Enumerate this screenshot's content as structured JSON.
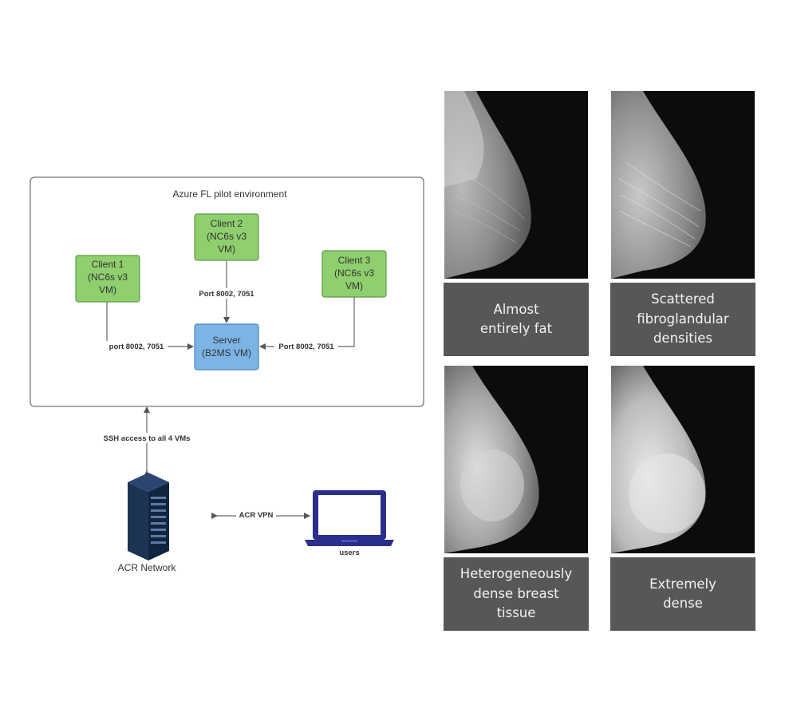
{
  "diagram": {
    "environment_title": "Azure FL pilot environment",
    "clients": [
      {
        "line1": "Client 1",
        "line2": "(NC6s v3",
        "line3": "VM)"
      },
      {
        "line1": "Client 2",
        "line2": "(NC6s v3",
        "line3": "VM)"
      },
      {
        "line1": "Client 3",
        "line2": "(NC6s v3",
        "line3": "VM)"
      }
    ],
    "server": {
      "line1": "Server",
      "line2": "(B2MS VM)"
    },
    "edges": {
      "client1_port": "port 8002, 7051",
      "client2_port": "Port 8002, 7051",
      "client3_port": "Port 8002, 7051",
      "ssh": "SSH access to all 4 VMs",
      "vpn": "ACR VPN"
    },
    "acr_network_label": "ACR Network",
    "users_label": "users",
    "colors": {
      "client_fill": "#8fcf6e",
      "client_stroke": "#5f9b4a",
      "server_fill": "#7cb4e6",
      "server_stroke": "#4a84bd",
      "laptop": "#2a2f8c",
      "server_rack": "#152a45"
    }
  },
  "density_categories": [
    {
      "caption": "Almost\nentirely fat",
      "density_level": 0.1
    },
    {
      "caption": "Scattered\nfibroglandular\ndensities",
      "density_level": 0.35
    },
    {
      "caption": "Heterogeneously\ndense breast\ntissue",
      "density_level": 0.65
    },
    {
      "caption": "Extremely\ndense",
      "density_level": 0.9
    }
  ]
}
